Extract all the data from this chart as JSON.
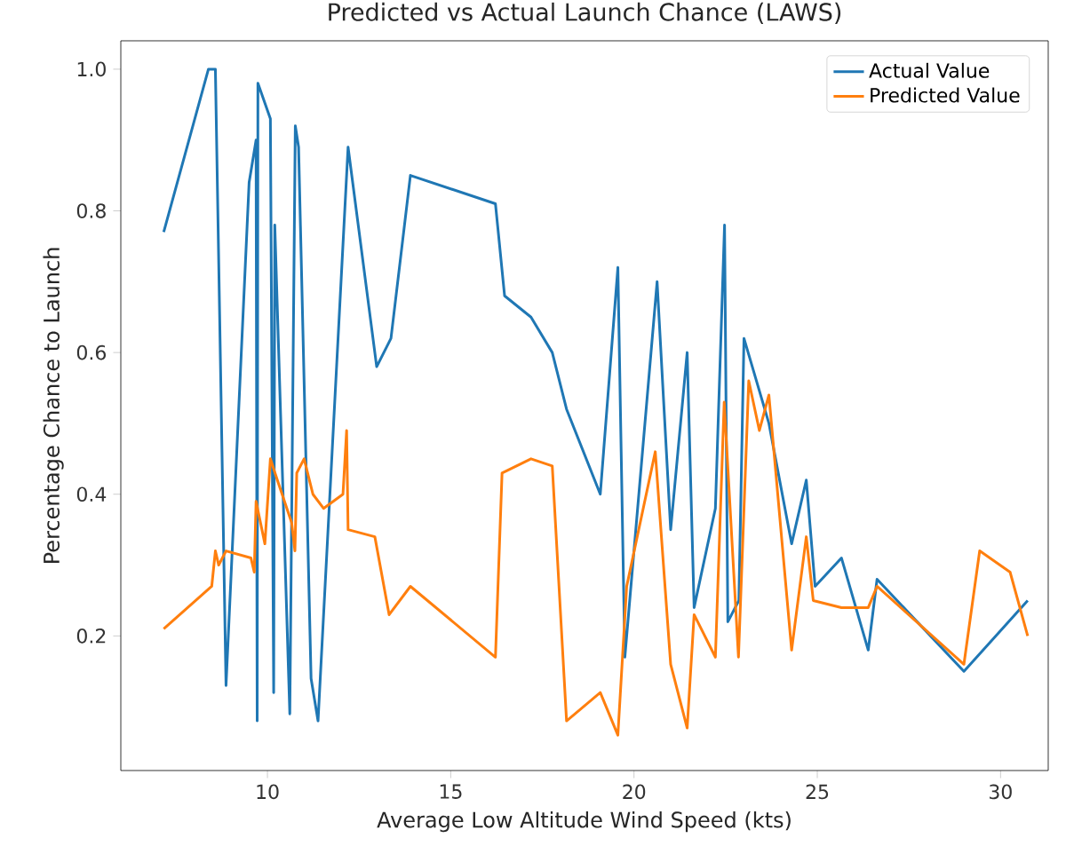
{
  "chart_data": {
    "type": "line",
    "title": "Predicted vs Actual Launch Chance (LAWS)",
    "xlabel": "Average Low Altitude Wind Speed (kts)",
    "ylabel": "Percentage Chance to Launch",
    "xlim": [
      6.0,
      31.3
    ],
    "ylim": [
      0.01,
      1.04
    ],
    "xticks": [
      10,
      15,
      20,
      25,
      30
    ],
    "yticks": [
      0.2,
      0.4,
      0.6,
      0.8,
      {
        "value": 1.0,
        "label": "1.0"
      }
    ],
    "legend": "top right",
    "grid": false,
    "series": [
      {
        "name": "Actual Value",
        "color": "#1f77b4",
        "x": [
          7.17,
          8.39,
          8.58,
          8.87,
          9.5,
          9.69,
          9.72,
          9.74,
          10.08,
          10.17,
          10.2,
          10.61,
          10.76,
          10.85,
          11.19,
          11.38,
          12.2,
          12.98,
          13.37,
          13.9,
          16.22,
          16.47,
          17.19,
          17.77,
          18.16,
          19.08,
          19.56,
          19.75,
          20.63,
          21.0,
          21.45,
          21.64,
          22.22,
          22.47,
          22.56,
          22.86,
          23.0,
          23.68,
          24.3,
          24.7,
          24.94,
          25.66,
          26.39,
          26.63,
          29.0,
          30.74
        ],
        "values": [
          0.77,
          1.0,
          1.0,
          0.13,
          0.84,
          0.9,
          0.08,
          0.98,
          0.93,
          0.12,
          0.78,
          0.09,
          0.92,
          0.89,
          0.14,
          0.08,
          0.89,
          0.58,
          0.62,
          0.85,
          0.81,
          0.68,
          0.65,
          0.6,
          0.52,
          0.4,
          0.72,
          0.17,
          0.7,
          0.35,
          0.6,
          0.24,
          0.38,
          0.78,
          0.22,
          0.25,
          0.62,
          0.5,
          0.33,
          0.42,
          0.27,
          0.31,
          0.18,
          0.28,
          0.15,
          0.25
        ]
      },
      {
        "name": "Predicted Value",
        "color": "#ff7f0e",
        "x": [
          7.17,
          8.48,
          8.58,
          8.67,
          8.87,
          9.55,
          9.64,
          9.69,
          9.93,
          10.08,
          10.27,
          10.66,
          10.75,
          10.8,
          11.0,
          11.24,
          11.53,
          12.06,
          12.16,
          12.2,
          12.93,
          13.32,
          13.9,
          16.22,
          16.4,
          17.19,
          17.77,
          18.16,
          19.08,
          19.56,
          19.8,
          20.58,
          21.0,
          21.45,
          21.64,
          22.22,
          22.46,
          22.85,
          23.13,
          23.42,
          23.68,
          24.3,
          24.7,
          24.89,
          25.66,
          26.39,
          26.63,
          29.0,
          29.43,
          30.26,
          30.74
        ],
        "values": [
          0.21,
          0.27,
          0.32,
          0.3,
          0.32,
          0.31,
          0.29,
          0.39,
          0.33,
          0.45,
          0.42,
          0.36,
          0.32,
          0.43,
          0.45,
          0.4,
          0.38,
          0.4,
          0.49,
          0.35,
          0.34,
          0.23,
          0.27,
          0.17,
          0.43,
          0.45,
          0.44,
          0.08,
          0.12,
          0.06,
          0.27,
          0.46,
          0.16,
          0.07,
          0.23,
          0.17,
          0.53,
          0.17,
          0.56,
          0.49,
          0.54,
          0.18,
          0.34,
          0.25,
          0.24,
          0.24,
          0.27,
          0.16,
          0.32,
          0.29,
          0.2
        ]
      }
    ]
  }
}
